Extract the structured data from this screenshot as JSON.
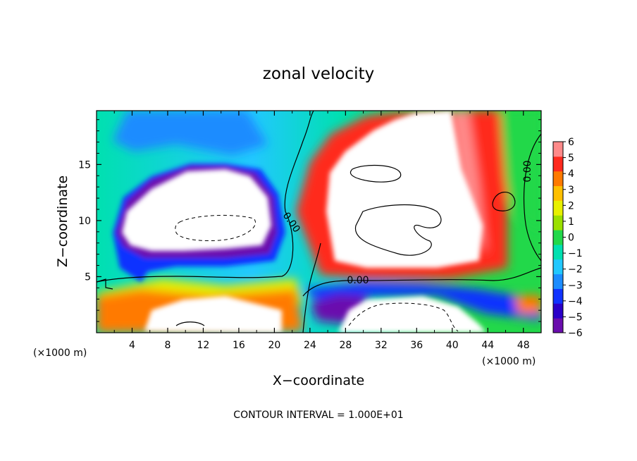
{
  "chart_data": {
    "type": "heatmap",
    "title": "zonal velocity",
    "xlabel": "X−coordinate",
    "ylabel": "Z−coordinate",
    "x_unit": "(×1000 m)",
    "y_unit": "(×1000 m)",
    "xlim": [
      0,
      50
    ],
    "ylim": [
      0,
      19.8
    ],
    "x_ticks": [
      4,
      8,
      12,
      16,
      20,
      24,
      28,
      32,
      36,
      40,
      44,
      48
    ],
    "y_ticks": [
      5,
      10,
      15
    ],
    "x_tick_labels": [
      "4",
      "8",
      "12",
      "16",
      "20",
      "24",
      "28",
      "32",
      "36",
      "40",
      "44",
      "48"
    ],
    "y_tick_labels": [
      "5",
      "10",
      "15"
    ],
    "colorbar": {
      "min": -6,
      "max": 6,
      "tick_labels": [
        "6",
        "5",
        "4",
        "3",
        "2",
        "1",
        "0",
        "−1",
        "−2",
        "−3",
        "−4",
        "−5",
        "−6"
      ],
      "colors": [
        "#6a0dad",
        "#2a00c8",
        "#1033ff",
        "#1c8cff",
        "#22c8ff",
        "#00e0b0",
        "#22d84a",
        "#9be000",
        "#e8f000",
        "#ffc000",
        "#ff7a00",
        "#ff2a1e",
        "#ff8a8a"
      ]
    },
    "contour_labels": [
      "0.00",
      "0.00",
      "0.00"
    ],
    "contour_interval_text": "CONTOUR INTERVAL = 1.000E+01",
    "grid": false
  },
  "colors": {
    "purple": "#6a0dad",
    "deep_blue": "#2a00c8",
    "blue": "#1033ff",
    "sky": "#1c8cff",
    "cyan": "#22c8ff",
    "teal": "#00e0b0",
    "green": "#22d84a",
    "lime": "#9be000",
    "yellow": "#e8f000",
    "orange": "#ff7a00",
    "red": "#ff2a1e",
    "pink": "#ff8a8a"
  }
}
